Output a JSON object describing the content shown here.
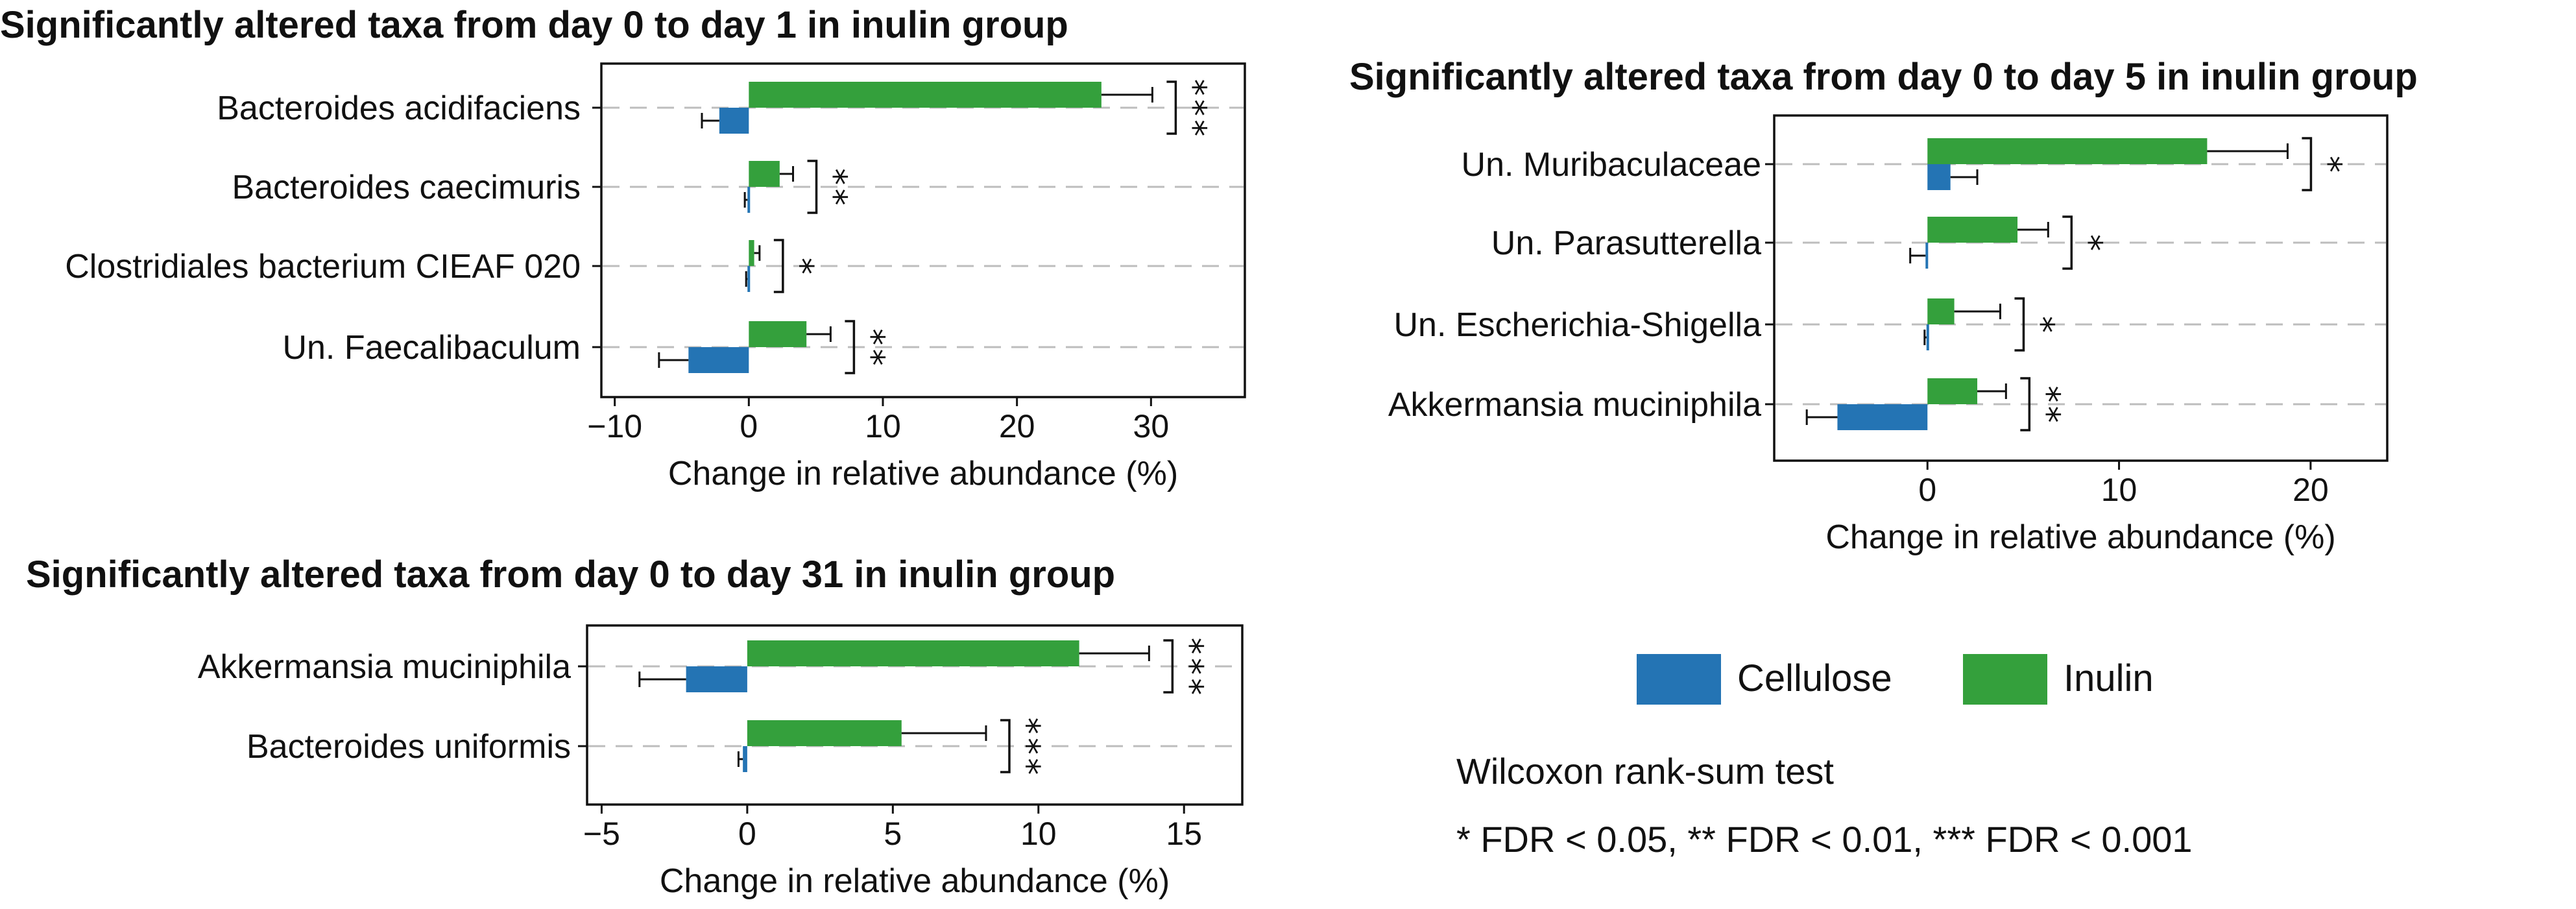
{
  "legend": {
    "items": [
      {
        "label": "Cellulose",
        "color": "#2474b4"
      },
      {
        "label": "Inulin",
        "color": "#34a03c"
      }
    ]
  },
  "notes": {
    "test": "Wilcoxon rank-sum test",
    "thresholds": "* FDR < 0.05, ** FDR < 0.01, *** FDR < 0.001"
  },
  "chart_data": [
    {
      "type": "bar",
      "orientation": "horizontal",
      "title": "Significantly altered taxa from day 0 to day 1 in inulin group",
      "xlabel": "Change in relative abundance (%)",
      "xlim": [
        -11,
        37
      ],
      "xticks": [
        -10,
        0,
        10,
        20,
        30
      ],
      "xtick_labels": [
        "−10",
        "0",
        "10",
        "20",
        "30"
      ],
      "categories": [
        "Bacteroides acidifaciens",
        "Bacteroides caecimuris",
        "Clostridiales bacterium CIEAF 020",
        "Un. Faecalibaculum"
      ],
      "series": [
        {
          "name": "Cellulose",
          "values": [
            -2.2,
            -0.1,
            -0.1,
            -4.5
          ],
          "errors": [
            1.3,
            0.2,
            0.1,
            2.2
          ]
        },
        {
          "name": "Inulin",
          "values": [
            26.3,
            2.3,
            0.4,
            4.3
          ],
          "errors": [
            3.8,
            1.0,
            0.4,
            1.8
          ]
        }
      ],
      "significance": [
        "***",
        "**",
        "*",
        "**"
      ]
    },
    {
      "type": "bar",
      "orientation": "horizontal",
      "title": "Significantly altered taxa from day 0 to day 5 in inulin group",
      "xlabel": "Change in relative abundance (%)",
      "xlim": [
        -8,
        24
      ],
      "xticks": [
        0,
        10,
        20
      ],
      "xtick_labels": [
        "0",
        "10",
        "20"
      ],
      "categories": [
        "Un. Muribaculaceae",
        "Un. Parasutterella",
        "Un. Escherichia-Shigella",
        "Akkermansia muciniphila"
      ],
      "series": [
        {
          "name": "Cellulose",
          "values": [
            1.2,
            -0.1,
            -0.05,
            -4.7
          ],
          "errors": [
            1.4,
            0.8,
            0.1,
            1.6
          ]
        },
        {
          "name": "Inulin",
          "values": [
            14.6,
            4.7,
            1.4,
            2.6
          ],
          "errors": [
            4.2,
            1.6,
            2.4,
            1.5
          ]
        }
      ],
      "significance": [
        "*",
        "*",
        "*",
        "**"
      ]
    },
    {
      "type": "bar",
      "orientation": "horizontal",
      "title": "Significantly altered taxa from day 0 to day 31 in inulin group",
      "xlabel": "Change in relative abundance (%)",
      "xlim": [
        -5.5,
        17
      ],
      "xticks": [
        -5,
        0,
        5,
        10,
        15
      ],
      "xtick_labels": [
        "−5",
        "0",
        "5",
        "10",
        "15"
      ],
      "categories": [
        "Akkermansia muciniphila",
        "Bacteroides uniformis"
      ],
      "series": [
        {
          "name": "Cellulose",
          "values": [
            -2.1,
            -0.15
          ],
          "errors": [
            1.6,
            0.15
          ]
        },
        {
          "name": "Inulin",
          "values": [
            11.4,
            5.3
          ],
          "errors": [
            2.4,
            2.9
          ]
        }
      ],
      "significance": [
        "***",
        "***"
      ]
    }
  ]
}
